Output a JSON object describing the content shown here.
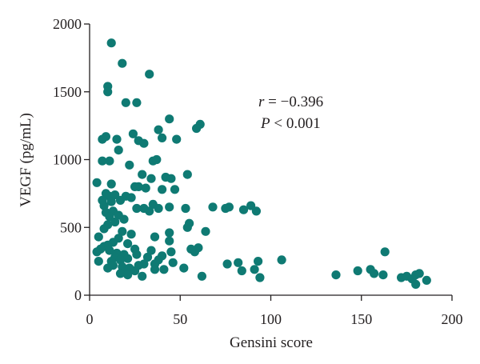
{
  "chart_data": {
    "type": "scatter",
    "xlabel": "Gensini score",
    "ylabel": "VEGF (pg/mL)",
    "xlim": [
      0,
      200
    ],
    "ylim": [
      0,
      2000
    ],
    "xticks": [
      0,
      50,
      100,
      150,
      200
    ],
    "yticks": [
      0,
      500,
      1000,
      1500,
      2000
    ],
    "x_tick_labels": [
      "0",
      "50",
      "100",
      "150",
      "200"
    ],
    "y_tick_labels": [
      "0",
      "500",
      "1000",
      "1500",
      "2000"
    ],
    "annotation": {
      "r_symbol": "r",
      "r_text": " = −0.396",
      "p_symbol": "P",
      "p_text": " < 0.001"
    },
    "grid": false,
    "marker_color": "#0f7a73",
    "points": [
      [
        12,
        1860
      ],
      [
        18,
        1710
      ],
      [
        33,
        1630
      ],
      [
        10,
        1540
      ],
      [
        10,
        1500
      ],
      [
        20,
        1420
      ],
      [
        26,
        1420
      ],
      [
        44,
        1300
      ],
      [
        61,
        1260
      ],
      [
        59,
        1230
      ],
      [
        38,
        1220
      ],
      [
        24,
        1190
      ],
      [
        40,
        1160
      ],
      [
        9,
        1170
      ],
      [
        15,
        1150
      ],
      [
        27,
        1140
      ],
      [
        7,
        1150
      ],
      [
        30,
        1120
      ],
      [
        48,
        1150
      ],
      [
        16,
        1070
      ],
      [
        7,
        990
      ],
      [
        11,
        990
      ],
      [
        22,
        960
      ],
      [
        35,
        990
      ],
      [
        37,
        1000
      ],
      [
        29,
        890
      ],
      [
        34,
        860
      ],
      [
        54,
        890
      ],
      [
        42,
        870
      ],
      [
        45,
        860
      ],
      [
        4,
        830
      ],
      [
        12,
        820
      ],
      [
        27,
        800
      ],
      [
        31,
        790
      ],
      [
        25,
        800
      ],
      [
        47,
        780
      ],
      [
        40,
        780
      ],
      [
        9,
        750
      ],
      [
        11,
        730
      ],
      [
        14,
        740
      ],
      [
        20,
        730
      ],
      [
        23,
        720
      ],
      [
        7,
        700
      ],
      [
        12,
        690
      ],
      [
        17,
        700
      ],
      [
        8,
        660
      ],
      [
        35,
        670
      ],
      [
        30,
        640
      ],
      [
        44,
        650
      ],
      [
        38,
        640
      ],
      [
        53,
        640
      ],
      [
        26,
        640
      ],
      [
        33,
        620
      ],
      [
        13,
        620
      ],
      [
        9,
        610
      ],
      [
        11,
        580
      ],
      [
        16,
        590
      ],
      [
        68,
        650
      ],
      [
        75,
        640
      ],
      [
        77,
        650
      ],
      [
        85,
        630
      ],
      [
        89,
        660
      ],
      [
        92,
        620
      ],
      [
        19,
        560
      ],
      [
        14,
        540
      ],
      [
        10,
        520
      ],
      [
        55,
        530
      ],
      [
        54,
        500
      ],
      [
        64,
        470
      ],
      [
        44,
        460
      ],
      [
        8,
        490
      ],
      [
        18,
        470
      ],
      [
        23,
        450
      ],
      [
        5,
        430
      ],
      [
        16,
        420
      ],
      [
        36,
        430
      ],
      [
        44,
        400
      ],
      [
        13,
        390
      ],
      [
        21,
        380
      ],
      [
        10,
        370
      ],
      [
        8,
        360
      ],
      [
        6,
        340
      ],
      [
        11,
        330
      ],
      [
        25,
        340
      ],
      [
        34,
        330
      ],
      [
        45,
        320
      ],
      [
        58,
        320
      ],
      [
        60,
        350
      ],
      [
        56,
        340
      ],
      [
        4,
        320
      ],
      [
        15,
        310
      ],
      [
        19,
        300
      ],
      [
        26,
        300
      ],
      [
        14,
        280
      ],
      [
        21,
        270
      ],
      [
        38,
        260
      ],
      [
        40,
        290
      ],
      [
        32,
        280
      ],
      [
        17,
        260
      ],
      [
        5,
        250
      ],
      [
        12,
        250
      ],
      [
        36,
        230
      ],
      [
        30,
        230
      ],
      [
        46,
        240
      ],
      [
        13,
        220
      ],
      [
        18,
        210
      ],
      [
        27,
        220
      ],
      [
        22,
        200
      ],
      [
        52,
        200
      ],
      [
        10,
        200
      ],
      [
        19,
        170
      ],
      [
        25,
        180
      ],
      [
        36,
        190
      ],
      [
        41,
        190
      ],
      [
        17,
        160
      ],
      [
        21,
        150
      ],
      [
        29,
        140
      ],
      [
        62,
        140
      ],
      [
        76,
        230
      ],
      [
        82,
        240
      ],
      [
        84,
        180
      ],
      [
        91,
        190
      ],
      [
        93,
        250
      ],
      [
        94,
        130
      ],
      [
        106,
        260
      ],
      [
        136,
        150
      ],
      [
        148,
        180
      ],
      [
        155,
        190
      ],
      [
        157,
        160
      ],
      [
        162,
        150
      ],
      [
        163,
        320
      ],
      [
        172,
        130
      ],
      [
        175,
        140
      ],
      [
        178,
        120
      ],
      [
        180,
        150
      ],
      [
        182,
        160
      ],
      [
        180,
        80
      ],
      [
        186,
        110
      ]
    ]
  }
}
